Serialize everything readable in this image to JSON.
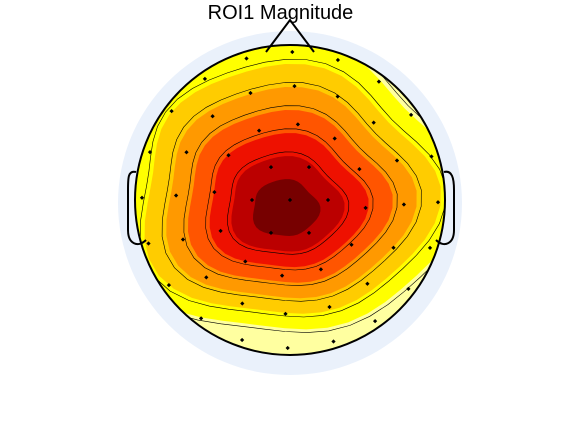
{
  "figure": {
    "title": "ROI1 Magnitude"
  },
  "colors": {
    "background": "#ffffff",
    "outer_ring": "#eaf1fb",
    "colormap": [
      "#ffffa0",
      "#ffff00",
      "#ffcc00",
      "#ff9900",
      "#ff5500",
      "#ee1100",
      "#bb0000",
      "#770000"
    ],
    "contour_line": "#000000",
    "head_outline": "#000000",
    "electrode": "#000000"
  },
  "map": {
    "peak_level": 1.0,
    "contour_levels": [
      0.15,
      0.28,
      0.41,
      0.54,
      0.67,
      0.8
    ]
  }
}
